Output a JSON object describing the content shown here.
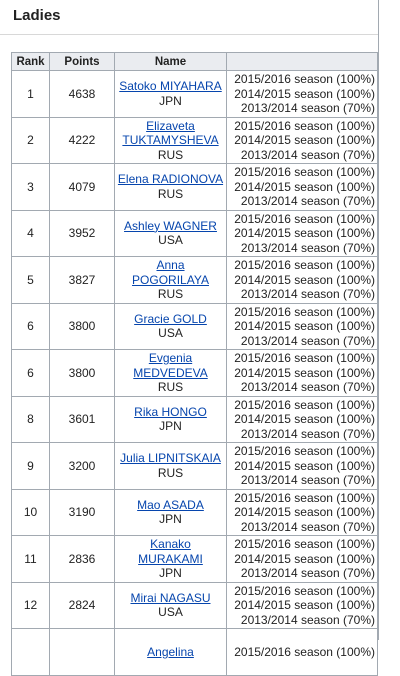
{
  "section": {
    "title": "Ladies"
  },
  "table": {
    "headers": {
      "rank": "Rank",
      "points": "Points",
      "name": "Name",
      "seasons": ""
    },
    "rows": [
      {
        "rank": "1",
        "points": "4638",
        "name_lines": [
          "Satoko MIYAHARA"
        ],
        "nation": "JPN",
        "seasons": [
          "2015/2016 season (100%)",
          "2014/2015 season (100%)",
          "2013/2014 season (70%)"
        ]
      },
      {
        "rank": "2",
        "points": "4222",
        "name_lines": [
          "Elizaveta",
          "TUKTAMYSHEVA"
        ],
        "nation": "RUS",
        "seasons": [
          "2015/2016 season (100%)",
          "2014/2015 season (100%)",
          "2013/2014 season (70%)"
        ]
      },
      {
        "rank": "3",
        "points": "4079",
        "name_lines": [
          "Elena RADIONOVA"
        ],
        "nation": "RUS",
        "seasons": [
          "2015/2016 season (100%)",
          "2014/2015 season (100%)",
          "2013/2014 season (70%)"
        ]
      },
      {
        "rank": "4",
        "points": "3952",
        "name_lines": [
          "Ashley WAGNER"
        ],
        "nation": "USA",
        "seasons": [
          "2015/2016 season (100%)",
          "2014/2015 season (100%)",
          "2013/2014 season (70%)"
        ]
      },
      {
        "rank": "5",
        "points": "3827",
        "name_lines": [
          "Anna POGORILAYA"
        ],
        "nation": "RUS",
        "seasons": [
          "2015/2016 season (100%)",
          "2014/2015 season (100%)",
          "2013/2014 season (70%)"
        ]
      },
      {
        "rank": "6",
        "points": "3800",
        "name_lines": [
          "Gracie GOLD"
        ],
        "nation": "USA",
        "seasons": [
          "2015/2016 season (100%)",
          "2014/2015 season (100%)",
          "2013/2014 season (70%)"
        ]
      },
      {
        "rank": "6",
        "points": "3800",
        "name_lines": [
          "Evgenia",
          "MEDVEDEVA"
        ],
        "nation": "RUS",
        "seasons": [
          "2015/2016 season (100%)",
          "2014/2015 season (100%)",
          "2013/2014 season (70%)"
        ]
      },
      {
        "rank": "8",
        "points": "3601",
        "name_lines": [
          "Rika HONGO"
        ],
        "nation": "JPN",
        "seasons": [
          "2015/2016 season (100%)",
          "2014/2015 season (100%)",
          "2013/2014 season (70%)"
        ]
      },
      {
        "rank": "9",
        "points": "3200",
        "name_lines": [
          "Julia LIPNITSKAIA"
        ],
        "nation": "RUS",
        "seasons": [
          "2015/2016 season (100%)",
          "2014/2015 season (100%)",
          "2013/2014 season (70%)"
        ]
      },
      {
        "rank": "10",
        "points": "3190",
        "name_lines": [
          "Mao ASADA"
        ],
        "nation": "JPN",
        "seasons": [
          "2015/2016 season (100%)",
          "2014/2015 season (100%)",
          "2013/2014 season (70%)"
        ]
      },
      {
        "rank": "11",
        "points": "2836",
        "name_lines": [
          "Kanako MURAKAMI"
        ],
        "nation": "JPN",
        "seasons": [
          "2015/2016 season (100%)",
          "2014/2015 season (100%)",
          "2013/2014 season (70%)"
        ]
      },
      {
        "rank": "12",
        "points": "2824",
        "name_lines": [
          "Mirai NAGASU"
        ],
        "nation": "USA",
        "seasons": [
          "2015/2016 season (100%)",
          "2014/2015 season (100%)",
          "2013/2014 season (70%)"
        ]
      },
      {
        "rank": "",
        "points": "",
        "name_lines": [
          "Angelina"
        ],
        "nation": "",
        "seasons": [
          "2015/2016 season (100%)"
        ]
      }
    ]
  }
}
